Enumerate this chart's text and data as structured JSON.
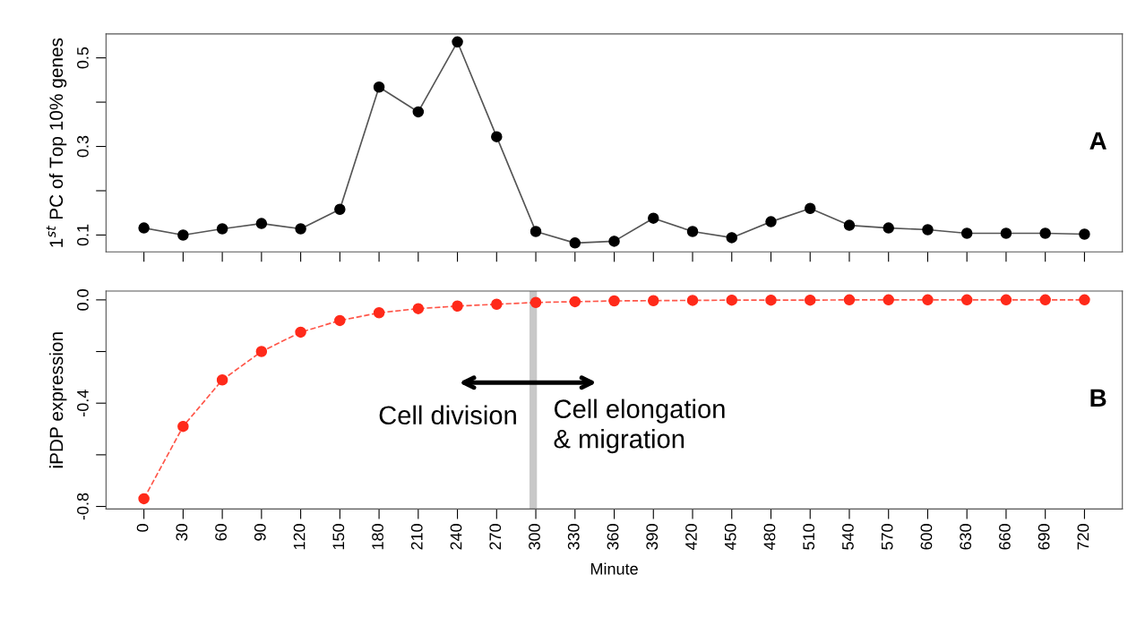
{
  "chart_data": [
    {
      "type": "line",
      "ylabel": "1$^{st}$ PC of Top 10% genes",
      "annotations": [
        "A"
      ],
      "x": [
        0,
        30,
        60,
        90,
        120,
        150,
        180,
        210,
        240,
        270,
        300,
        330,
        360,
        390,
        420,
        450,
        480,
        510,
        540,
        570,
        600,
        630,
        660,
        690,
        720
      ],
      "series": [
        {
          "color": "#000000",
          "values": [
            0.116,
            0.1,
            0.114,
            0.126,
            0.114,
            0.158,
            0.434,
            0.378,
            0.536,
            0.322,
            0.108,
            0.082,
            0.086,
            0.138,
            0.108,
            0.094,
            0.13,
            0.16,
            0.122,
            0.116,
            0.112,
            0.104,
            0.104,
            0.104,
            0.102
          ]
        }
      ],
      "xlim": [
        -29,
        749
      ],
      "xticks": [
        {
          "value": 0,
          "label": null
        },
        {
          "value": 30,
          "label": null
        },
        {
          "value": 60,
          "label": null
        },
        {
          "value": 90,
          "label": null
        },
        {
          "value": 120,
          "label": null
        },
        {
          "value": 150,
          "label": null
        },
        {
          "value": 180,
          "label": null
        },
        {
          "value": 210,
          "label": null
        },
        {
          "value": 240,
          "label": null
        },
        {
          "value": 270,
          "label": null
        },
        {
          "value": 300,
          "label": null
        },
        {
          "value": 330,
          "label": null
        },
        {
          "value": 360,
          "label": null
        },
        {
          "value": 390,
          "label": null
        },
        {
          "value": 420,
          "label": null
        },
        {
          "value": 450,
          "label": null
        },
        {
          "value": 480,
          "label": null
        },
        {
          "value": 510,
          "label": null
        },
        {
          "value": 540,
          "label": null
        },
        {
          "value": 570,
          "label": null
        },
        {
          "value": 600,
          "label": null
        },
        {
          "value": 630,
          "label": null
        },
        {
          "value": 660,
          "label": null
        },
        {
          "value": 690,
          "label": null
        },
        {
          "value": 720,
          "label": null
        }
      ],
      "ylim": [
        0.062,
        0.554
      ],
      "yticks": [
        0.1,
        {
          "value": 0.2,
          "label": null
        },
        0.3,
        {
          "value": 0.4,
          "label": null
        },
        0.5
      ],
      "tick_labels": "y",
      "marker": "circle",
      "line_style": "solid",
      "grid": false,
      "legend": false
    },
    {
      "type": "line",
      "ylabel": "iPDP expression",
      "xlabel": "Minute",
      "annotations": [
        "B",
        "Cell division",
        "Cell elongation\n& migration"
      ],
      "x": [
        0,
        30,
        60,
        90,
        120,
        150,
        180,
        210,
        240,
        270,
        300,
        330,
        360,
        390,
        420,
        450,
        480,
        510,
        540,
        570,
        600,
        630,
        660,
        690,
        720
      ],
      "series": [
        {
          "color": "#ff2a1a",
          "values": [
            -0.77,
            -0.49,
            -0.31,
            -0.2,
            -0.125,
            -0.08,
            -0.05,
            -0.034,
            -0.024,
            -0.017,
            -0.01,
            -0.007,
            -0.004,
            -0.003,
            -0.002,
            -0.001,
            -0.001,
            -0.001,
            0,
            0,
            0,
            0,
            0,
            0,
            0
          ]
        }
      ],
      "xlim": [
        -29,
        749
      ],
      "xticks": [
        0,
        30,
        60,
        90,
        120,
        150,
        180,
        210,
        240,
        270,
        300,
        330,
        360,
        390,
        420,
        450,
        480,
        510,
        540,
        570,
        600,
        630,
        660,
        690,
        720
      ],
      "ylim": [
        -0.81,
        0.034
      ],
      "yticks": [
        -0.8,
        {
          "value": -0.6,
          "label": null
        },
        -0.4,
        {
          "value": -0.2,
          "label": null
        },
        {
          "value": 0,
          "label": "0.0"
        }
      ],
      "ref_lines": [
        {
          "axis": "x",
          "value": 298,
          "color": "#c8c8c8"
        }
      ],
      "marker": "circle",
      "line_style": "dashed",
      "grid": false,
      "legend": false
    }
  ]
}
